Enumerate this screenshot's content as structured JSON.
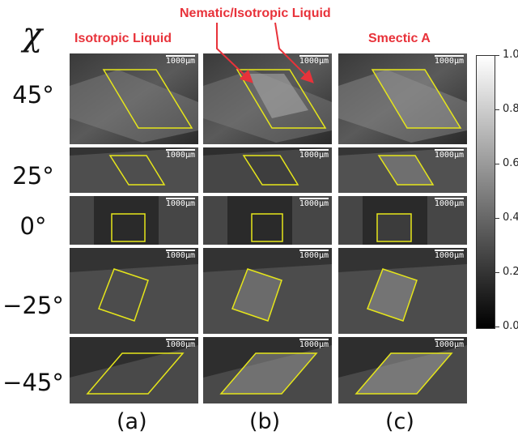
{
  "figure": {
    "chi_symbol": "χ",
    "headers": {
      "a": "Isotropic Liquid",
      "b": "Nematic/Isotropic Liquid",
      "c": "Smectic A"
    },
    "row_labels": [
      "45°",
      "25°",
      "0°",
      "−25°",
      "−45°"
    ],
    "column_labels": [
      "(a)",
      "(b)",
      "(c)"
    ],
    "scale_bar": "1000μm",
    "colorbar_ticks": [
      "1.0",
      "0.8",
      "0.6",
      "0.4",
      "0.2",
      "0.0"
    ],
    "colors": {
      "annotation_red": "#e8323a",
      "outline_yellow": "#e6e61a"
    }
  }
}
